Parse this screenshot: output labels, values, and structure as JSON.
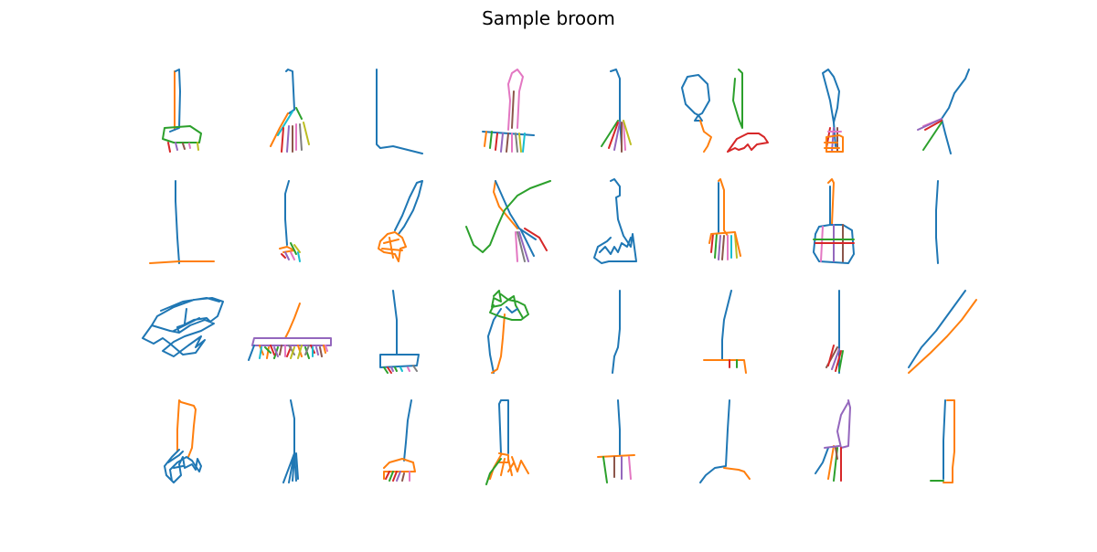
{
  "figure": {
    "title": "Sample broom"
  },
  "palette": {
    "blue": "#1f77b4",
    "orange": "#ff7f0e",
    "green": "#2ca02c",
    "red": "#d62728",
    "purple": "#9467bd",
    "brown": "#8c564b",
    "pink": "#e377c2",
    "gray": "#7f7f7f",
    "olive": "#bcbd22",
    "cyan": "#17becf"
  },
  "grid": {
    "rows": 4,
    "cols": 8,
    "count": 32
  }
}
